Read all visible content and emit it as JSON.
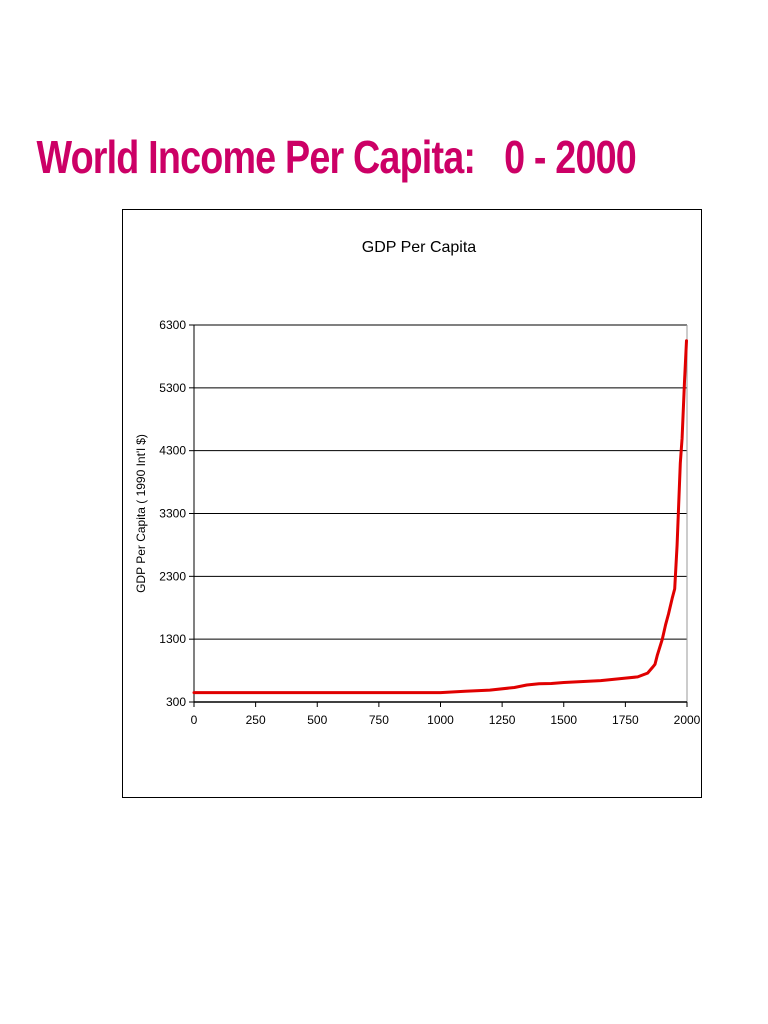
{
  "slide": {
    "title": "World Income Per Capita:   0 - 2000"
  },
  "colors": {
    "title": "#cc0066",
    "series_line": "#e00000",
    "gridline": "#000000",
    "frame": "#000000"
  },
  "chart_data": {
    "type": "line",
    "title": "GDP Per Capita",
    "xlabel": "",
    "ylabel": "GDP Per Capita ( 1990 Int'l $)",
    "xlim": [
      0,
      2000
    ],
    "ylim": [
      300,
      6300
    ],
    "x_ticks": [
      0,
      250,
      500,
      750,
      1000,
      1250,
      1500,
      1750,
      2000
    ],
    "y_ticks": [
      300,
      1300,
      2300,
      3300,
      4300,
      5300,
      6300
    ],
    "grid": "horizontal",
    "legend": "none",
    "series": [
      {
        "x": [
          0,
          250,
          500,
          750,
          1000,
          1100,
          1200,
          1300,
          1350,
          1400,
          1450,
          1500,
          1550,
          1600,
          1650,
          1700,
          1750,
          1800,
          1820,
          1840,
          1860,
          1870,
          1880,
          1900,
          1913,
          1925,
          1940,
          1950,
          1960,
          1973,
          1980,
          1990,
          1998
        ],
        "values": [
          450,
          450,
          450,
          450,
          450,
          470,
          490,
          530,
          570,
          590,
          595,
          610,
          620,
          630,
          640,
          660,
          680,
          700,
          730,
          760,
          850,
          900,
          1050,
          1300,
          1530,
          1700,
          1950,
          2100,
          2800,
          4100,
          4500,
          5400,
          6050
        ]
      }
    ]
  }
}
